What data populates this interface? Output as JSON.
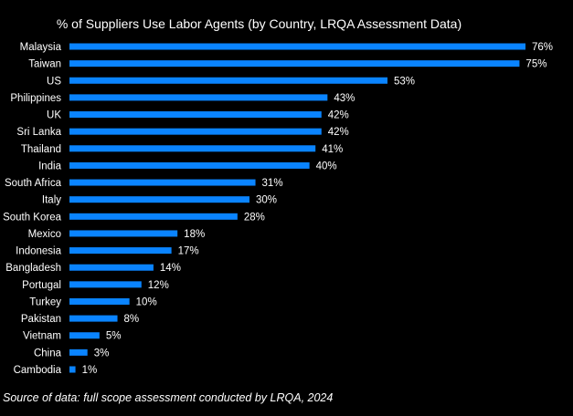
{
  "chart_data": {
    "type": "bar",
    "orientation": "horizontal",
    "title": "% of Suppliers Use Labor Agents (by Country, LRQA Assessment Data)",
    "categories": [
      "Malaysia",
      "Taiwan",
      "US",
      "Philippines",
      "UK",
      "Sri Lanka",
      "Thailand",
      "India",
      "South Africa",
      "Italy",
      "South Korea",
      "Mexico",
      "Indonesia",
      "Bangladesh",
      "Portugal",
      "Turkey",
      "Pakistan",
      "Vietnam",
      "China",
      "Cambodia"
    ],
    "values": [
      76,
      75,
      53,
      43,
      42,
      42,
      41,
      40,
      31,
      30,
      28,
      18,
      17,
      14,
      12,
      10,
      8,
      5,
      3,
      1
    ],
    "value_suffix": "%",
    "xlabel": "",
    "ylabel": "",
    "xlim": [
      0,
      76
    ],
    "grid": false,
    "bar_color": "#0a84ff",
    "background": "#000000"
  },
  "footnote": "Source of data: full scope assessment conducted by LRQA, 2024"
}
